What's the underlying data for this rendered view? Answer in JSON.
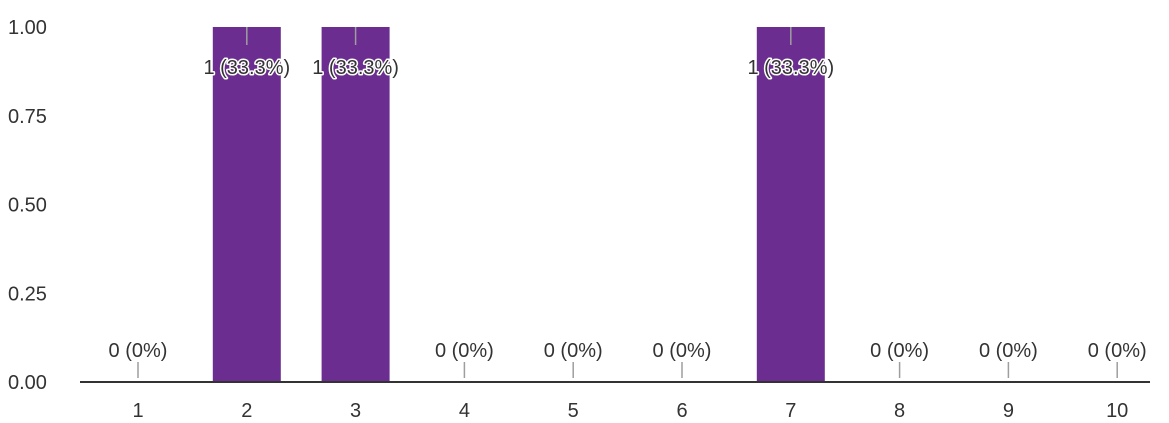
{
  "chart_data": {
    "type": "bar",
    "categories": [
      "1",
      "2",
      "3",
      "4",
      "5",
      "6",
      "7",
      "8",
      "9",
      "10"
    ],
    "values": [
      0,
      1,
      1,
      0,
      0,
      0,
      1,
      0,
      0,
      0
    ],
    "data_labels": [
      "0 (0%)",
      "1 (33.3%)",
      "1 (33.3%)",
      "0 (0%)",
      "0 (0%)",
      "0 (0%)",
      "1 (33.3%)",
      "0 (0%)",
      "0 (0%)",
      "0 (0%)"
    ],
    "y_ticks": [
      "0.00",
      "0.25",
      "0.50",
      "0.75",
      "1.00"
    ],
    "ylim": [
      0,
      1
    ],
    "title": "",
    "xlabel": "",
    "ylabel": "",
    "grid": false,
    "legend": "none",
    "colors": {
      "bar": "#6b2d8f",
      "axis": "#333333",
      "text": "#333333",
      "leader": "#9e9e9e"
    }
  }
}
